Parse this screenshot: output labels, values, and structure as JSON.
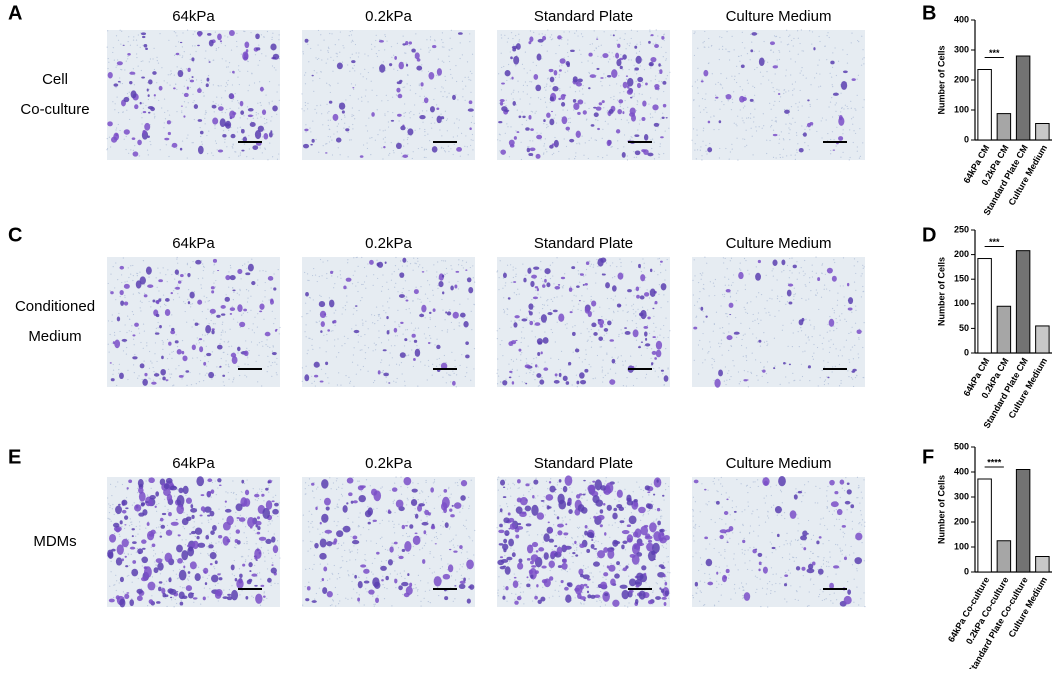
{
  "panel_labels": [
    "A",
    "B",
    "C",
    "D",
    "E",
    "F"
  ],
  "row_labels": [
    [
      "Cell",
      "Co-culture"
    ],
    [
      "Conditioned",
      "Medium"
    ],
    [
      "MDMs"
    ]
  ],
  "column_headers": [
    [
      "64kPa",
      "0.2kPa",
      "Standard Plate",
      "Culture Medium"
    ],
    [
      "64kPa",
      "0.2kPa",
      "Standard Plate",
      "Culture Medium"
    ],
    [
      "64kPa",
      "0.2kPa",
      "Standard Plate",
      "Culture Medium"
    ]
  ],
  "chart_data": [
    {
      "type": "bar",
      "y_label": "Number of Cells",
      "annotation": "***",
      "categories": [
        "64kPa CM",
        "0.2kPa CM",
        "Standard Plate CM",
        "Culture Medium"
      ],
      "values": [
        235,
        88,
        280,
        55
      ],
      "colors": [
        "#ffffff",
        "#a6a6a6",
        "#737373",
        "#c8c8c8"
      ],
      "ylim": [
        0,
        400
      ],
      "yticks": [
        0,
        100,
        200,
        300,
        400
      ]
    },
    {
      "type": "bar",
      "y_label": "Number of Cells",
      "annotation": "***",
      "categories": [
        "64kPa CM",
        "0.2kPa CM",
        "Standard Plate CM",
        "Culture Medium"
      ],
      "values": [
        192,
        95,
        208,
        55
      ],
      "colors": [
        "#ffffff",
        "#a6a6a6",
        "#737373",
        "#c8c8c8"
      ],
      "ylim": [
        0,
        250
      ],
      "yticks": [
        0,
        50,
        100,
        150,
        200,
        250
      ]
    },
    {
      "type": "bar",
      "y_label": "Number of Cells",
      "annotation": "****",
      "categories": [
        "64kPa Co-culture",
        "0.2kPa Co-culture",
        "Standard Plate Co-culture",
        "Culture Medium"
      ],
      "values": [
        372,
        125,
        410,
        62
      ],
      "colors": [
        "#ffffff",
        "#a6a6a6",
        "#737373",
        "#c8c8c8"
      ],
      "ylim": [
        0,
        500
      ],
      "yticks": [
        0,
        100,
        200,
        300,
        400,
        500
      ]
    }
  ]
}
